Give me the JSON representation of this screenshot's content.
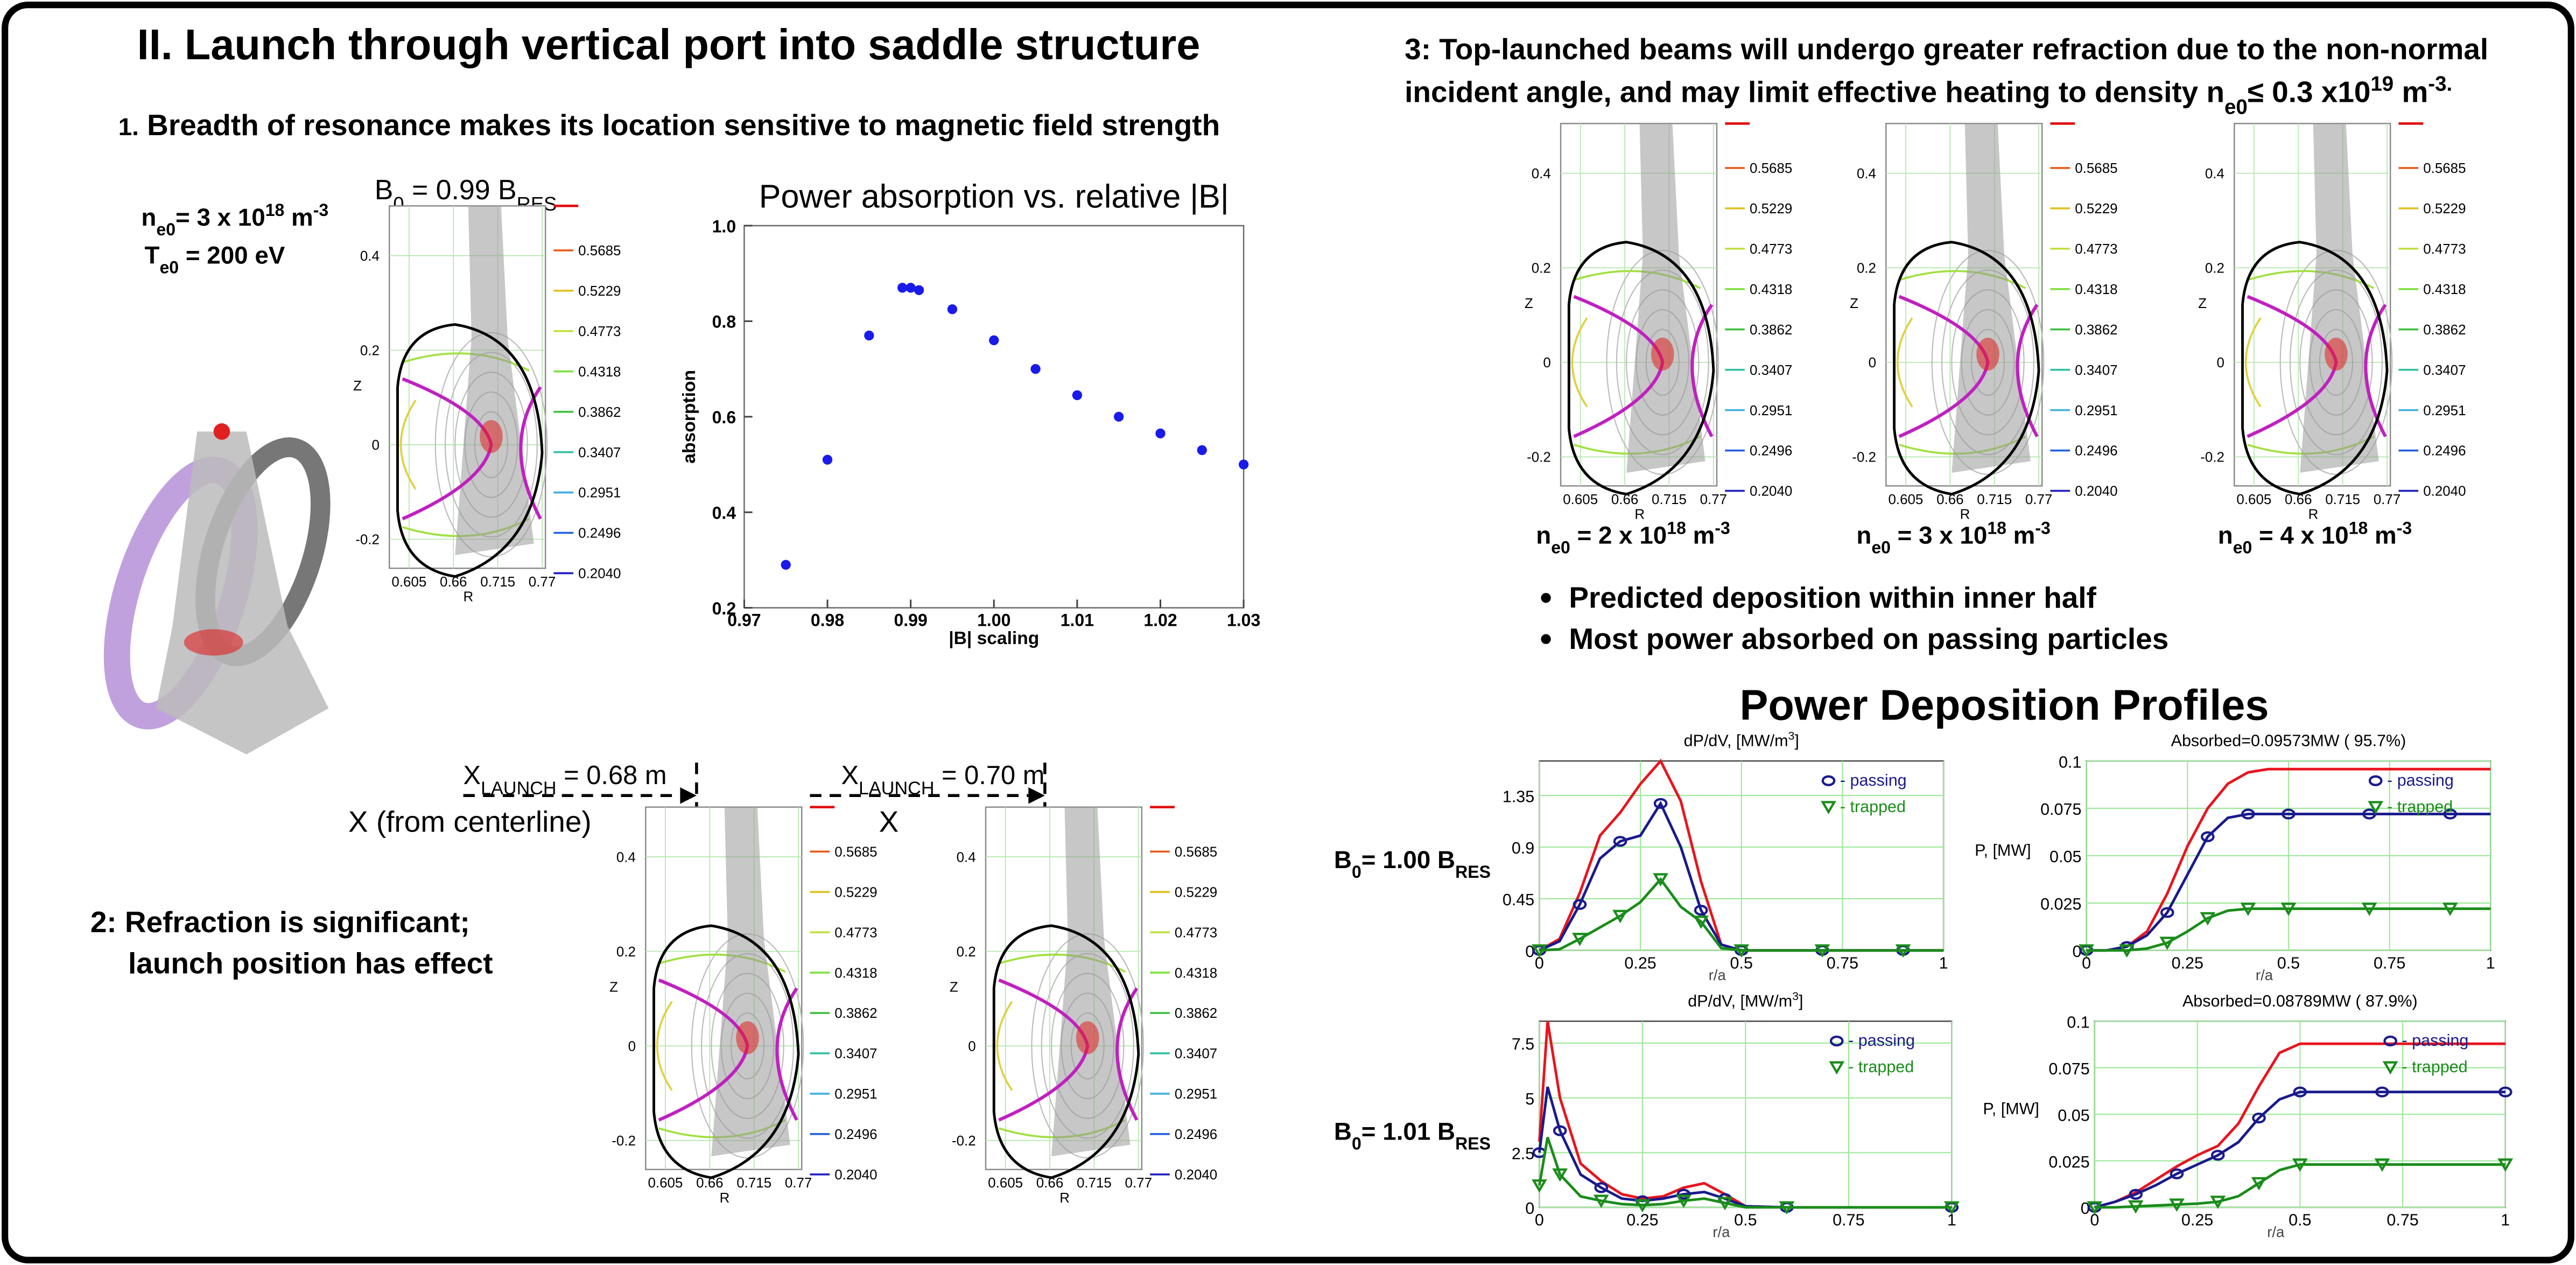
{
  "left_title": "II. Launch through vertical port into saddle structure",
  "section1": [
    "1.",
    " Breadth of resonance makes its location sensitive to magnetic field strength"
  ],
  "plasma_params": {
    "density": [
      "n",
      "e0",
      "= 3 x 10",
      "18",
      " m",
      "-3"
    ],
    "temperature": [
      "T",
      "e0",
      " = 200 eV"
    ]
  },
  "field_label": [
    "B",
    "0",
    " = 0.99 B",
    "RES"
  ],
  "equilibrium_axes": {
    "z_label": "Z",
    "r_label": "R",
    "z_ticks": [
      0.4,
      0.2,
      0,
      -0.2
    ],
    "r_ticks": [
      0.605,
      0.66,
      0.715,
      0.77
    ],
    "colorbar": [
      "0.5685",
      "0.5229",
      "0.4773",
      "0.4318",
      "0.3862",
      "0.3407",
      "0.2951",
      "0.2496",
      "0.2040"
    ]
  },
  "launch": [
    {
      "label": [
        "X",
        "LAUNCH",
        " = 0.68 m"
      ],
      "axis": "X (from centerline)"
    },
    {
      "label": [
        "X",
        "LAUNCH",
        " = 0.70 m"
      ],
      "axis": "X"
    }
  ],
  "section2": [
    "2:  Refraction is significant;",
    "launch position has effect"
  ],
  "right_title": {
    "line1": "3: Top-launched beams will undergo greater refraction due to the non-normal",
    "line2": [
      "incident angle, and may limit effective heating to  density n",
      "e0",
      "≤ 0.3 x10",
      "19",
      " m",
      "-3."
    ]
  },
  "density_cases": [
    [
      "n",
      "e0",
      " = 2 x 10",
      "18",
      " m",
      "-3"
    ],
    [
      "n",
      "e0",
      " = 3 x 10",
      "18",
      " m",
      "-3"
    ],
    [
      "n",
      "e0",
      " = 4 x 10",
      "18",
      " m",
      "-3"
    ]
  ],
  "bullets": [
    "Predicted deposition within inner half",
    "Most power absorbed on passing particles"
  ],
  "deposition_title": "Power Deposition Profiles",
  "field_cases": [
    [
      "B",
      "0",
      "= 1.00 B",
      "RES"
    ],
    [
      "B",
      "0",
      "= 1.01 B",
      "RES"
    ]
  ],
  "chart_data": [
    {
      "type": "scatter",
      "title": "Power absorption vs. relative |B|",
      "x_label": "|B| scaling",
      "y_label": "absorption",
      "color": "#1a1aeb",
      "x": [
        0.975,
        0.98,
        0.985,
        0.989,
        0.99,
        0.991,
        0.995,
        1.0,
        1.005,
        1.01,
        1.015,
        1.02,
        1.025,
        1.03
      ],
      "values": [
        0.29,
        0.51,
        0.77,
        0.87,
        0.87,
        0.865,
        0.825,
        0.76,
        0.7,
        0.645,
        0.6,
        0.565,
        0.53,
        0.5
      ],
      "xlim": [
        0.97,
        1.03
      ],
      "ylim": [
        0.2,
        1.0
      ],
      "xticks": [
        0.97,
        0.98,
        0.99,
        {
          "value": 1,
          "label": "1.00"
        },
        1.01,
        1.02,
        1.03
      ],
      "yticks": [
        0.2,
        0.4,
        0.6,
        0.8,
        {
          "value": 1,
          "label": "1.0"
        }
      ]
    },
    {
      "type": "line",
      "title": [
        "dP/dV, [MW/m",
        "3",
        "]"
      ],
      "x_label": "r/a",
      "x": [
        0,
        0.05,
        0.1,
        0.15,
        0.2,
        0.25,
        0.3,
        0.35,
        0.4,
        0.45,
        0.5,
        0.6,
        0.7,
        0.8,
        0.9,
        1
      ],
      "series": [
        {
          "color": "#e8141e",
          "values": [
            0,
            0.1,
            0.5,
            1.0,
            1.2,
            1.45,
            1.65,
            1.3,
            0.6,
            0.05,
            0,
            0,
            0,
            0,
            0,
            0
          ]
        },
        {
          "name": "- passing",
          "color": "#1a1a8c",
          "marker": "circle",
          "values": [
            0,
            0.08,
            0.4,
            0.8,
            0.95,
            1.0,
            1.28,
            0.9,
            0.35,
            0.05,
            0,
            0,
            0,
            0,
            0,
            0
          ]
        },
        {
          "name": "- trapped",
          "color": "#1a8c1a",
          "marker": "triangle",
          "values": [
            0,
            0.01,
            0.1,
            0.2,
            0.3,
            0.42,
            0.62,
            0.38,
            0.25,
            0.02,
            0,
            0,
            0,
            0,
            0,
            0
          ]
        }
      ],
      "xlim": [
        0,
        1
      ],
      "ylim": [
        0,
        1.65
      ],
      "xticks": [
        0,
        0.25,
        0.5,
        0.75,
        1
      ],
      "yticks": [
        0,
        0.45,
        0.9,
        1.35
      ],
      "grid": true
    },
    {
      "type": "line",
      "title": "Absorbed=0.09573MW ( 95.7%)",
      "x_label": "r/a",
      "y_label": "P, [MW]",
      "x": [
        0,
        0.05,
        0.1,
        0.15,
        0.2,
        0.25,
        0.3,
        0.35,
        0.4,
        0.45,
        0.5,
        0.6,
        0.7,
        0.8,
        0.9,
        1
      ],
      "series": [
        {
          "color": "#e8141e",
          "values": [
            0,
            0,
            0.002,
            0.01,
            0.03,
            0.055,
            0.075,
            0.088,
            0.094,
            0.0957,
            0.0957,
            0.0957,
            0.0957,
            0.0957,
            0.0957,
            0.0957
          ]
        },
        {
          "name": "- passing",
          "color": "#1a1a8c",
          "marker": "circle",
          "values": [
            0,
            0,
            0.002,
            0.008,
            0.02,
            0.04,
            0.06,
            0.07,
            0.072,
            0.072,
            0.072,
            0.072,
            0.072,
            0.072,
            0.072,
            0.072
          ]
        },
        {
          "name": "- trapped",
          "color": "#1a8c1a",
          "marker": "triangle",
          "values": [
            0,
            0,
            0,
            0.001,
            0.004,
            0.01,
            0.017,
            0.021,
            0.022,
            0.022,
            0.022,
            0.022,
            0.022,
            0.022,
            0.022,
            0.022
          ]
        }
      ],
      "xlim": [
        0,
        1
      ],
      "ylim": [
        0,
        0.1
      ],
      "xticks": [
        0,
        0.25,
        0.5,
        0.75,
        1
      ],
      "yticks": [
        0,
        0.025,
        0.05,
        0.075,
        0.1
      ],
      "grid": true
    },
    {
      "type": "line",
      "title": [
        "dP/dV, [MW/m",
        "3",
        "]"
      ],
      "x_label": "r/a",
      "x": [
        0,
        0.02,
        0.05,
        0.1,
        0.15,
        0.2,
        0.25,
        0.3,
        0.35,
        0.4,
        0.45,
        0.5,
        0.6,
        0.8,
        1
      ],
      "series": [
        {
          "color": "#e8141e",
          "values": [
            3,
            8.5,
            5,
            2,
            1.2,
            0.6,
            0.4,
            0.5,
            0.9,
            1.1,
            0.6,
            0.05,
            0,
            0,
            0
          ]
        },
        {
          "name": "- passing",
          "color": "#1a1a8c",
          "marker": "circle",
          "values": [
            2.5,
            5.5,
            3.5,
            1.5,
            0.9,
            0.4,
            0.3,
            0.4,
            0.6,
            0.7,
            0.4,
            0.05,
            0,
            0,
            0
          ]
        },
        {
          "name": "- trapped",
          "color": "#1a8c1a",
          "marker": "triangle",
          "values": [
            1,
            3.2,
            1.5,
            0.5,
            0.3,
            0.15,
            0.1,
            0.15,
            0.3,
            0.4,
            0.2,
            0,
            0,
            0,
            0
          ]
        }
      ],
      "xlim": [
        0,
        1
      ],
      "ylim": [
        0,
        8.5
      ],
      "xticks": [
        0,
        0.25,
        0.5,
        0.75,
        1
      ],
      "yticks": [
        0,
        2.5,
        5,
        7.5
      ],
      "grid": true
    },
    {
      "type": "line",
      "title": "Absorbed=0.08789MW ( 87.9%)",
      "x_label": "r/a",
      "y_label": "P, [MW]",
      "x": [
        0,
        0.05,
        0.1,
        0.15,
        0.2,
        0.25,
        0.3,
        0.35,
        0.4,
        0.45,
        0.5,
        0.6,
        0.7,
        0.8,
        1
      ],
      "series": [
        {
          "color": "#e8141e",
          "values": [
            0,
            0.003,
            0.008,
            0.015,
            0.022,
            0.028,
            0.033,
            0.045,
            0.065,
            0.083,
            0.0879,
            0.0879,
            0.0879,
            0.0879,
            0.0879
          ]
        },
        {
          "name": "- passing",
          "color": "#1a1a8c",
          "marker": "circle",
          "values": [
            0,
            0.003,
            0.007,
            0.012,
            0.018,
            0.023,
            0.028,
            0.035,
            0.048,
            0.058,
            0.062,
            0.062,
            0.062,
            0.062,
            0.062
          ]
        },
        {
          "name": "- trapped",
          "color": "#1a8c1a",
          "marker": "triangle",
          "values": [
            0,
            0,
            0.0005,
            0.001,
            0.0015,
            0.002,
            0.003,
            0.006,
            0.013,
            0.02,
            0.023,
            0.023,
            0.023,
            0.023,
            0.023
          ]
        }
      ],
      "xlim": [
        0,
        1
      ],
      "ylim": [
        0,
        0.1
      ],
      "xticks": [
        0,
        0.25,
        0.5,
        0.75,
        1
      ],
      "yticks": [
        0,
        0.025,
        0.05,
        0.075,
        0.1
      ],
      "grid": true
    }
  ]
}
